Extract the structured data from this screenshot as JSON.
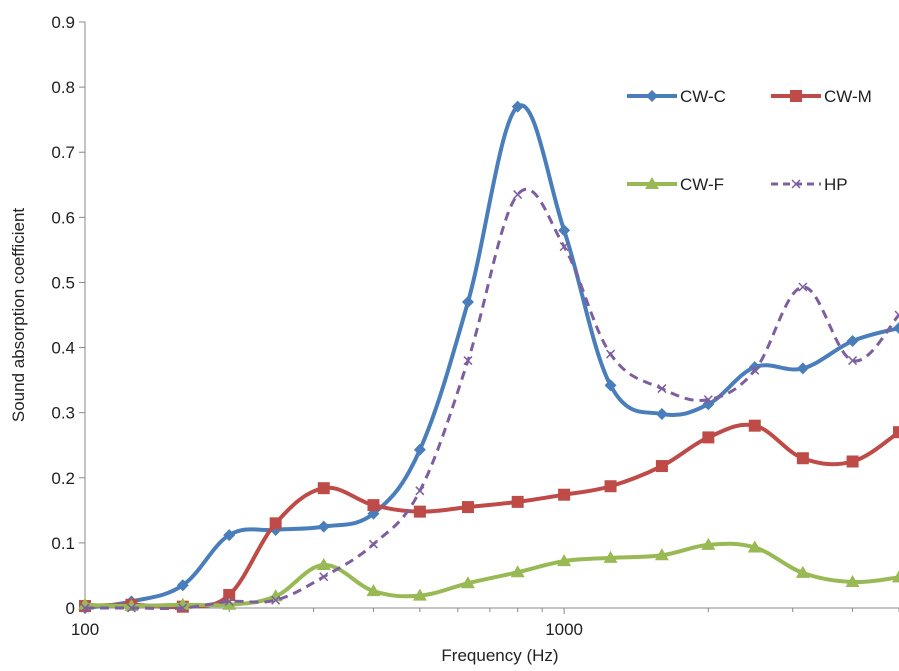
{
  "chart_data": {
    "type": "line",
    "title": "",
    "xlabel": "Frequency (Hz)",
    "ylabel": "Sound absorption coefficient",
    "x_scale": "log",
    "xlim": [
      100,
      5000
    ],
    "ylim": [
      0,
      0.9
    ],
    "x_ticks": [
      {
        "value": 100,
        "label": "100"
      },
      {
        "value": 1000,
        "label": "1000"
      }
    ],
    "y_ticks": [
      {
        "value": 0,
        "label": "0"
      },
      {
        "value": 0.1,
        "label": "0.1"
      },
      {
        "value": 0.2,
        "label": "0.2"
      },
      {
        "value": 0.3,
        "label": "0.3"
      },
      {
        "value": 0.4,
        "label": "0.4"
      },
      {
        "value": 0.5,
        "label": "0.5"
      },
      {
        "value": 0.6,
        "label": "0.6"
      },
      {
        "value": 0.7,
        "label": "0.7"
      },
      {
        "value": 0.8,
        "label": "0.8"
      },
      {
        "value": 0.9,
        "label": "0.9"
      }
    ],
    "grid": false,
    "legend_position": "top-right",
    "x": [
      100,
      125,
      160,
      200,
      250,
      315,
      400,
      500,
      630,
      800,
      1000,
      1250,
      1600,
      2000,
      2500,
      3150,
      4000,
      5000
    ],
    "series": [
      {
        "name": "CW-C",
        "color": "#4a7ebb",
        "marker": "diamond",
        "dash": "solid",
        "values": [
          0.0,
          0.01,
          0.035,
          0.112,
          0.12,
          0.125,
          0.145,
          0.243,
          0.47,
          0.77,
          0.58,
          0.342,
          0.298,
          0.313,
          0.37,
          0.368,
          0.41,
          0.43
        ]
      },
      {
        "name": "CW-M",
        "color": "#be4b48",
        "marker": "square",
        "dash": "solid",
        "values": [
          0.003,
          0.005,
          0.002,
          0.02,
          0.13,
          0.184,
          0.158,
          0.148,
          0.155,
          0.163,
          0.174,
          0.187,
          0.218,
          0.262,
          0.28,
          0.23,
          0.225,
          0.27
        ]
      },
      {
        "name": "CW-F",
        "color": "#98b954",
        "marker": "triangle",
        "dash": "solid",
        "values": [
          0.005,
          0.003,
          0.005,
          0.005,
          0.018,
          0.066,
          0.026,
          0.019,
          0.038,
          0.055,
          0.072,
          0.077,
          0.081,
          0.097,
          0.093,
          0.054,
          0.04,
          0.047
        ]
      },
      {
        "name": "HP",
        "color": "#7d5fa0",
        "marker": "x",
        "dash": "dashed",
        "values": [
          0.0,
          0.0,
          0.0,
          0.01,
          0.012,
          0.048,
          0.098,
          0.18,
          0.38,
          0.635,
          0.555,
          0.39,
          0.337,
          0.32,
          0.365,
          0.493,
          0.38,
          0.45
        ]
      }
    ]
  }
}
